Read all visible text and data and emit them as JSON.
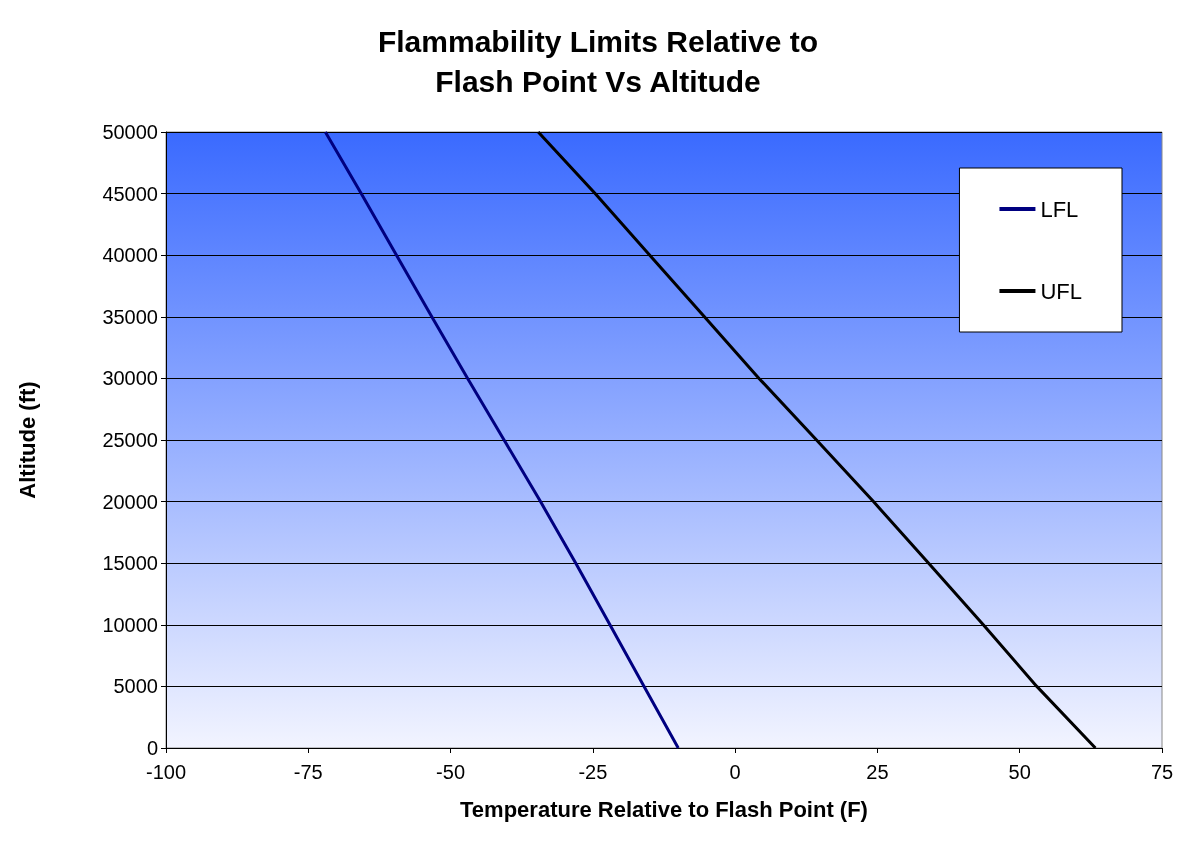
{
  "chart_data": {
    "type": "line",
    "title": "Flammability Limits Relative to\nFlash Point Vs Altitude",
    "xlabel": "Temperature Relative to Flash Point (F)",
    "ylabel": "Altitude (ft)",
    "series": [
      {
        "name": "LFL",
        "color": "#000080",
        "x": [
          -10,
          -16,
          -22,
          -28,
          -34.2,
          -40.6,
          -47,
          -53.3,
          -59.5,
          -65.7,
          -72
        ],
        "values": [
          0,
          5000,
          10000,
          15000,
          20000,
          25000,
          30000,
          35000,
          40000,
          45000,
          50000
        ]
      },
      {
        "name": "UFL",
        "color": "#000000",
        "x": [
          63.3,
          53,
          43.6,
          34,
          24.3,
          14.3,
          4.2,
          -5.4,
          -15,
          -24.6,
          -34.6
        ],
        "values": [
          0,
          5000,
          10000,
          15000,
          20000,
          25000,
          30000,
          35000,
          40000,
          45000,
          50000
        ]
      }
    ],
    "xlim": [
      -100,
      75
    ],
    "xticks": [
      -100,
      -75,
      -50,
      -25,
      0,
      25,
      50,
      75
    ],
    "ylim": [
      0,
      50000
    ],
    "yticks": [
      0,
      5000,
      10000,
      15000,
      20000,
      25000,
      30000,
      35000,
      40000,
      45000,
      50000
    ],
    "grid": "y",
    "legend": "top right",
    "marker": "none",
    "line_style": "solid"
  }
}
